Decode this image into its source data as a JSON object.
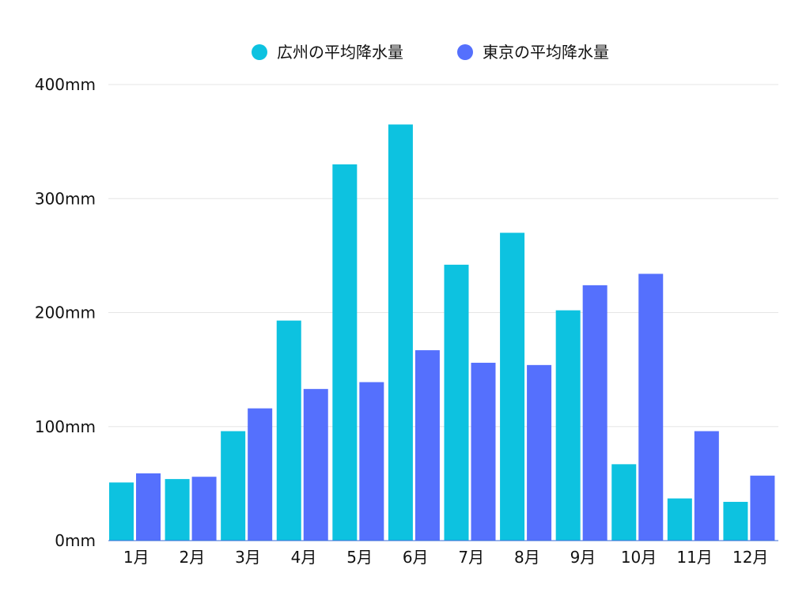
{
  "chart_data": {
    "type": "bar",
    "title": "",
    "xlabel": "",
    "ylabel": "",
    "categories": [
      "1月",
      "2月",
      "3月",
      "4月",
      "5月",
      "6月",
      "7月",
      "8月",
      "9月",
      "10月",
      "11月",
      "12月"
    ],
    "series": [
      {
        "name": "広州の平均降水量",
        "color": "#0dc2e0",
        "values": [
          51,
          54,
          96,
          193,
          330,
          365,
          242,
          270,
          202,
          67,
          37,
          34
        ]
      },
      {
        "name": "東京の平均降水量",
        "color": "#5570fd",
        "values": [
          59,
          56,
          116,
          133,
          139,
          167,
          156,
          154,
          224,
          234,
          96,
          57
        ]
      }
    ],
    "ylim": [
      0,
      400
    ],
    "y_ticks": [
      "0mm",
      "100mm",
      "200mm",
      "300mm",
      "400mm"
    ],
    "grid": true,
    "legend_position": "top-center"
  }
}
